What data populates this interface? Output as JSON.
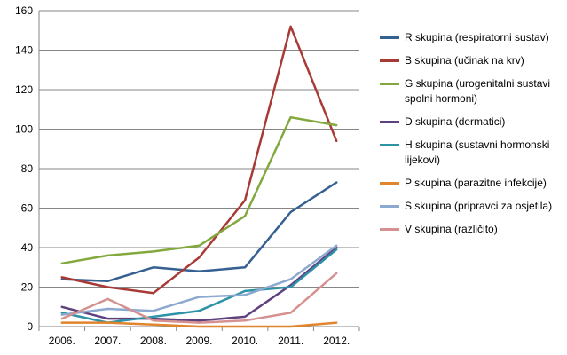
{
  "chart_data": {
    "type": "line",
    "title": "",
    "xlabel": "",
    "ylabel": "",
    "categories": [
      "2006.",
      "2007.",
      "2008.",
      "2009.",
      "2010.",
      "2011.",
      "2012."
    ],
    "ylim": [
      0,
      160
    ],
    "yticks": [
      "0",
      "20",
      "40",
      "60",
      "80",
      "100",
      "120",
      "140",
      "160"
    ],
    "grid": true,
    "legend_position": "right",
    "series": [
      {
        "name": "R skupina (respiratorni sustav)",
        "color": "#376092",
        "values": [
          24,
          23,
          30,
          28,
          30,
          58,
          73
        ]
      },
      {
        "name": "B skupina (učinak na krv)",
        "color": "#A83A36",
        "values": [
          25,
          20,
          17,
          35,
          64,
          152,
          94
        ]
      },
      {
        "name": "G skupina (urogenitalni sustavi spolni hormoni)",
        "color": "#82A83E",
        "values": [
          32,
          36,
          38,
          41,
          56,
          106,
          102
        ]
      },
      {
        "name": "D skupina (dermatici)",
        "color": "#5F4180",
        "values": [
          10,
          4,
          4,
          3,
          5,
          21,
          40
        ]
      },
      {
        "name": "H skupina (sustavni hormonski lijekovi)",
        "color": "#2E93A6",
        "values": [
          7,
          2,
          5,
          8,
          18,
          20,
          39
        ]
      },
      {
        "name": "P skupina (parazitne infekcije)",
        "color": "#E0852D",
        "values": [
          2,
          2,
          1,
          0,
          0,
          0,
          2
        ]
      },
      {
        "name": "S skupina (pripravci za osjetila)",
        "color": "#8EA9D0",
        "values": [
          6,
          9,
          8,
          15,
          16,
          24,
          41
        ]
      },
      {
        "name": "V skupina (različito)",
        "color": "#D4918F",
        "values": [
          4,
          14,
          3,
          2,
          3,
          7,
          27
        ]
      }
    ]
  }
}
